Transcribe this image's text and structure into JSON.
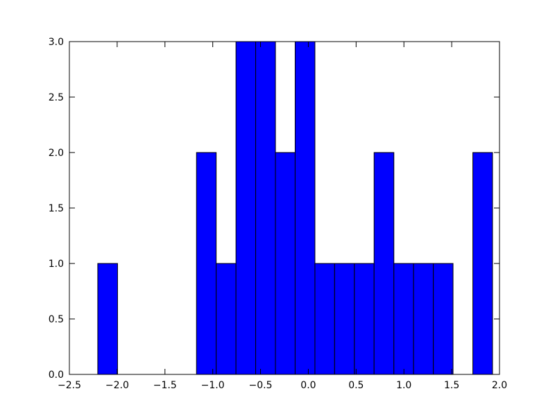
{
  "chart_data": {
    "type": "histogram",
    "bins": [
      -2.203,
      -1.996,
      -1.79,
      -1.583,
      -1.377,
      -1.17,
      -0.964,
      -0.757,
      -0.551,
      -0.344,
      -0.138,
      0.069,
      0.275,
      0.482,
      0.688,
      0.895,
      1.101,
      1.308,
      1.514,
      1.721,
      1.927
    ],
    "counts": [
      1,
      0,
      0,
      0,
      0,
      2,
      1,
      3,
      3,
      2,
      3,
      1,
      1,
      1,
      2,
      1,
      1,
      1,
      0,
      2
    ],
    "color": "#0000ff",
    "xlim": [
      -2.5,
      2.0
    ],
    "xticks": [
      {
        "value": -2.5,
        "label": "−2.5"
      },
      {
        "value": -2.0,
        "label": "−2.0"
      },
      {
        "value": -1.5,
        "label": "−1.5"
      },
      {
        "value": -1.0,
        "label": "−1.0"
      },
      {
        "value": -0.5,
        "label": "−0.5"
      },
      {
        "value": 0,
        "label": "0.0"
      },
      0.5,
      {
        "value": 1,
        "label": "1.0"
      },
      1.5,
      {
        "value": 2,
        "label": "2.0"
      }
    ],
    "ylim": [
      0,
      3
    ],
    "yticks": [
      {
        "value": 0,
        "label": "0.0"
      },
      0.5,
      {
        "value": 1,
        "label": "1.0"
      },
      1.5,
      {
        "value": 2,
        "label": "2.0"
      },
      2.5,
      {
        "value": 3,
        "label": "3.0"
      }
    ],
    "grid": false
  }
}
